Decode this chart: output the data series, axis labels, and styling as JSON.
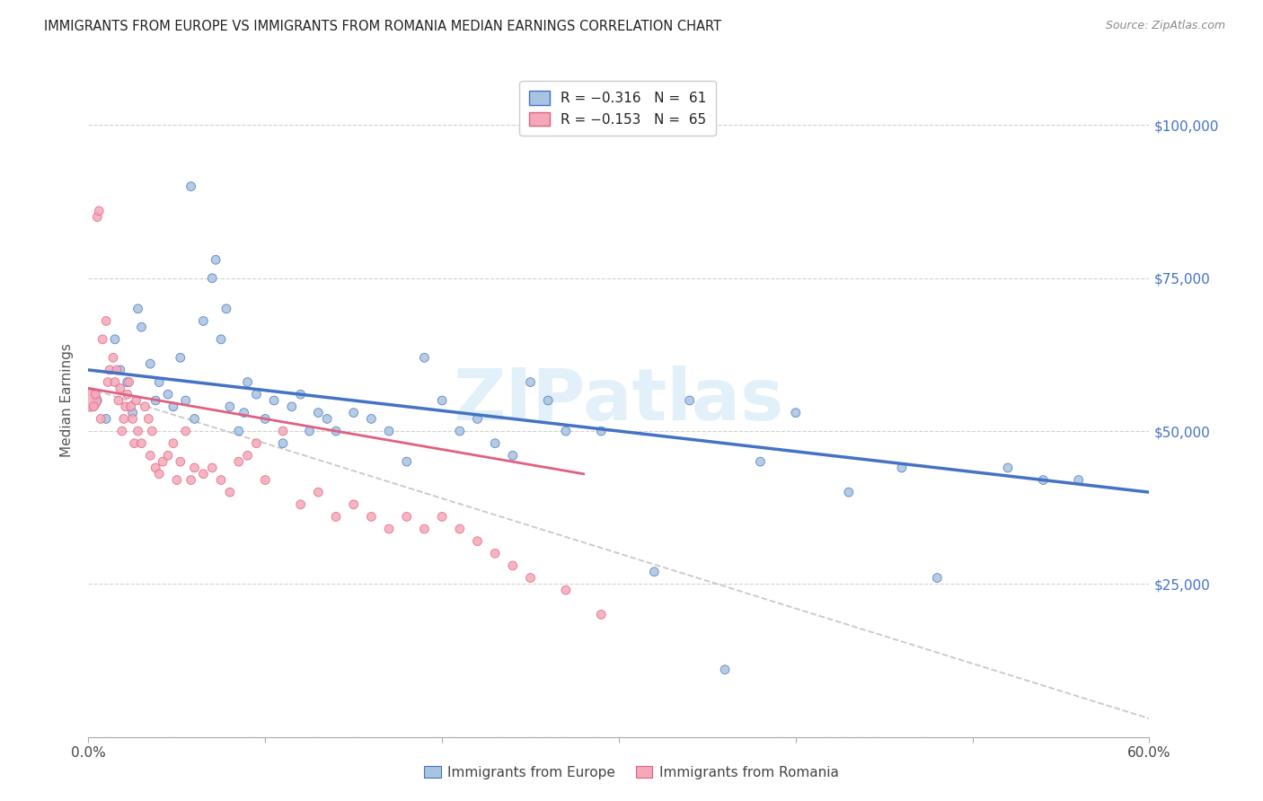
{
  "title": "IMMIGRANTS FROM EUROPE VS IMMIGRANTS FROM ROMANIA MEDIAN EARNINGS CORRELATION CHART",
  "source": "Source: ZipAtlas.com",
  "ylabel": "Median Earnings",
  "x_min": 0.0,
  "x_max": 0.6,
  "y_min": 0,
  "y_max": 110000,
  "x_ticks": [
    0.0,
    0.1,
    0.2,
    0.3,
    0.4,
    0.5,
    0.6
  ],
  "y_ticks": [
    0,
    25000,
    50000,
    75000,
    100000
  ],
  "color_europe": "#a8c4e0",
  "color_romania": "#f4a8b8",
  "line_color_europe": "#4472c4",
  "line_color_romania": "#e06080",
  "line_color_dashed": "#c8c8c8",
  "watermark": "ZIPatlas",
  "europe_scatter_x": [
    0.005,
    0.01,
    0.015,
    0.018,
    0.022,
    0.025,
    0.028,
    0.03,
    0.035,
    0.038,
    0.04,
    0.045,
    0.048,
    0.052,
    0.055,
    0.058,
    0.06,
    0.065,
    0.07,
    0.072,
    0.075,
    0.078,
    0.08,
    0.085,
    0.088,
    0.09,
    0.095,
    0.1,
    0.105,
    0.11,
    0.115,
    0.12,
    0.125,
    0.13,
    0.135,
    0.14,
    0.15,
    0.16,
    0.17,
    0.18,
    0.19,
    0.2,
    0.21,
    0.22,
    0.23,
    0.24,
    0.25,
    0.26,
    0.27,
    0.29,
    0.32,
    0.34,
    0.36,
    0.38,
    0.4,
    0.43,
    0.46,
    0.48,
    0.52,
    0.54,
    0.56
  ],
  "europe_scatter_y": [
    55000,
    52000,
    65000,
    60000,
    58000,
    53000,
    70000,
    67000,
    61000,
    55000,
    58000,
    56000,
    54000,
    62000,
    55000,
    90000,
    52000,
    68000,
    75000,
    78000,
    65000,
    70000,
    54000,
    50000,
    53000,
    58000,
    56000,
    52000,
    55000,
    48000,
    54000,
    56000,
    50000,
    53000,
    52000,
    50000,
    53000,
    52000,
    50000,
    45000,
    62000,
    55000,
    50000,
    52000,
    48000,
    46000,
    58000,
    55000,
    50000,
    50000,
    27000,
    55000,
    11000,
    45000,
    53000,
    40000,
    44000,
    26000,
    44000,
    42000,
    42000
  ],
  "europe_scatter_size": [
    50,
    50,
    50,
    50,
    50,
    50,
    50,
    50,
    50,
    50,
    50,
    50,
    50,
    50,
    50,
    50,
    50,
    50,
    50,
    50,
    50,
    50,
    50,
    50,
    50,
    50,
    50,
    50,
    50,
    50,
    50,
    50,
    50,
    50,
    50,
    50,
    50,
    50,
    50,
    50,
    50,
    50,
    50,
    50,
    50,
    50,
    50,
    50,
    50,
    50,
    50,
    50,
    50,
    50,
    50,
    50,
    50,
    50,
    50,
    50,
    50
  ],
  "romania_scatter_x": [
    0.001,
    0.003,
    0.004,
    0.005,
    0.006,
    0.007,
    0.008,
    0.01,
    0.011,
    0.012,
    0.014,
    0.015,
    0.016,
    0.017,
    0.018,
    0.019,
    0.02,
    0.021,
    0.022,
    0.023,
    0.024,
    0.025,
    0.026,
    0.027,
    0.028,
    0.03,
    0.032,
    0.034,
    0.035,
    0.036,
    0.038,
    0.04,
    0.042,
    0.045,
    0.048,
    0.05,
    0.052,
    0.055,
    0.058,
    0.06,
    0.065,
    0.07,
    0.075,
    0.08,
    0.085,
    0.09,
    0.095,
    0.1,
    0.11,
    0.12,
    0.13,
    0.14,
    0.15,
    0.16,
    0.17,
    0.18,
    0.19,
    0.2,
    0.21,
    0.22,
    0.23,
    0.24,
    0.25,
    0.27,
    0.29
  ],
  "romania_scatter_y": [
    55000,
    54000,
    56000,
    85000,
    86000,
    52000,
    65000,
    68000,
    58000,
    60000,
    62000,
    58000,
    60000,
    55000,
    57000,
    50000,
    52000,
    54000,
    56000,
    58000,
    54000,
    52000,
    48000,
    55000,
    50000,
    48000,
    54000,
    52000,
    46000,
    50000,
    44000,
    43000,
    45000,
    46000,
    48000,
    42000,
    45000,
    50000,
    42000,
    44000,
    43000,
    44000,
    42000,
    40000,
    45000,
    46000,
    48000,
    42000,
    50000,
    38000,
    40000,
    36000,
    38000,
    36000,
    34000,
    36000,
    34000,
    36000,
    34000,
    32000,
    30000,
    28000,
    26000,
    24000,
    20000
  ],
  "romania_scatter_size": [
    300,
    50,
    50,
    50,
    50,
    50,
    50,
    50,
    50,
    50,
    50,
    50,
    50,
    50,
    50,
    50,
    50,
    50,
    50,
    50,
    50,
    50,
    50,
    50,
    50,
    50,
    50,
    50,
    50,
    50,
    50,
    50,
    50,
    50,
    50,
    50,
    50,
    50,
    50,
    50,
    50,
    50,
    50,
    50,
    50,
    50,
    50,
    50,
    50,
    50,
    50,
    50,
    50,
    50,
    50,
    50,
    50,
    50,
    50,
    50,
    50,
    50,
    50,
    50,
    50
  ],
  "europe_line_x": [
    0.0,
    0.6
  ],
  "europe_line_y": [
    60000,
    40000
  ],
  "romania_line_x": [
    0.0,
    0.28
  ],
  "romania_line_y": [
    57000,
    43000
  ],
  "dashed_line_x": [
    0.0,
    0.6
  ],
  "dashed_line_y": [
    57000,
    3000
  ],
  "legend_europe_label": "R = −0.316   N =  61",
  "legend_romania_label": "R = −0.153   N =  65",
  "bottom_legend_europe": "Immigrants from Europe",
  "bottom_legend_romania": "Immigrants from Romania"
}
